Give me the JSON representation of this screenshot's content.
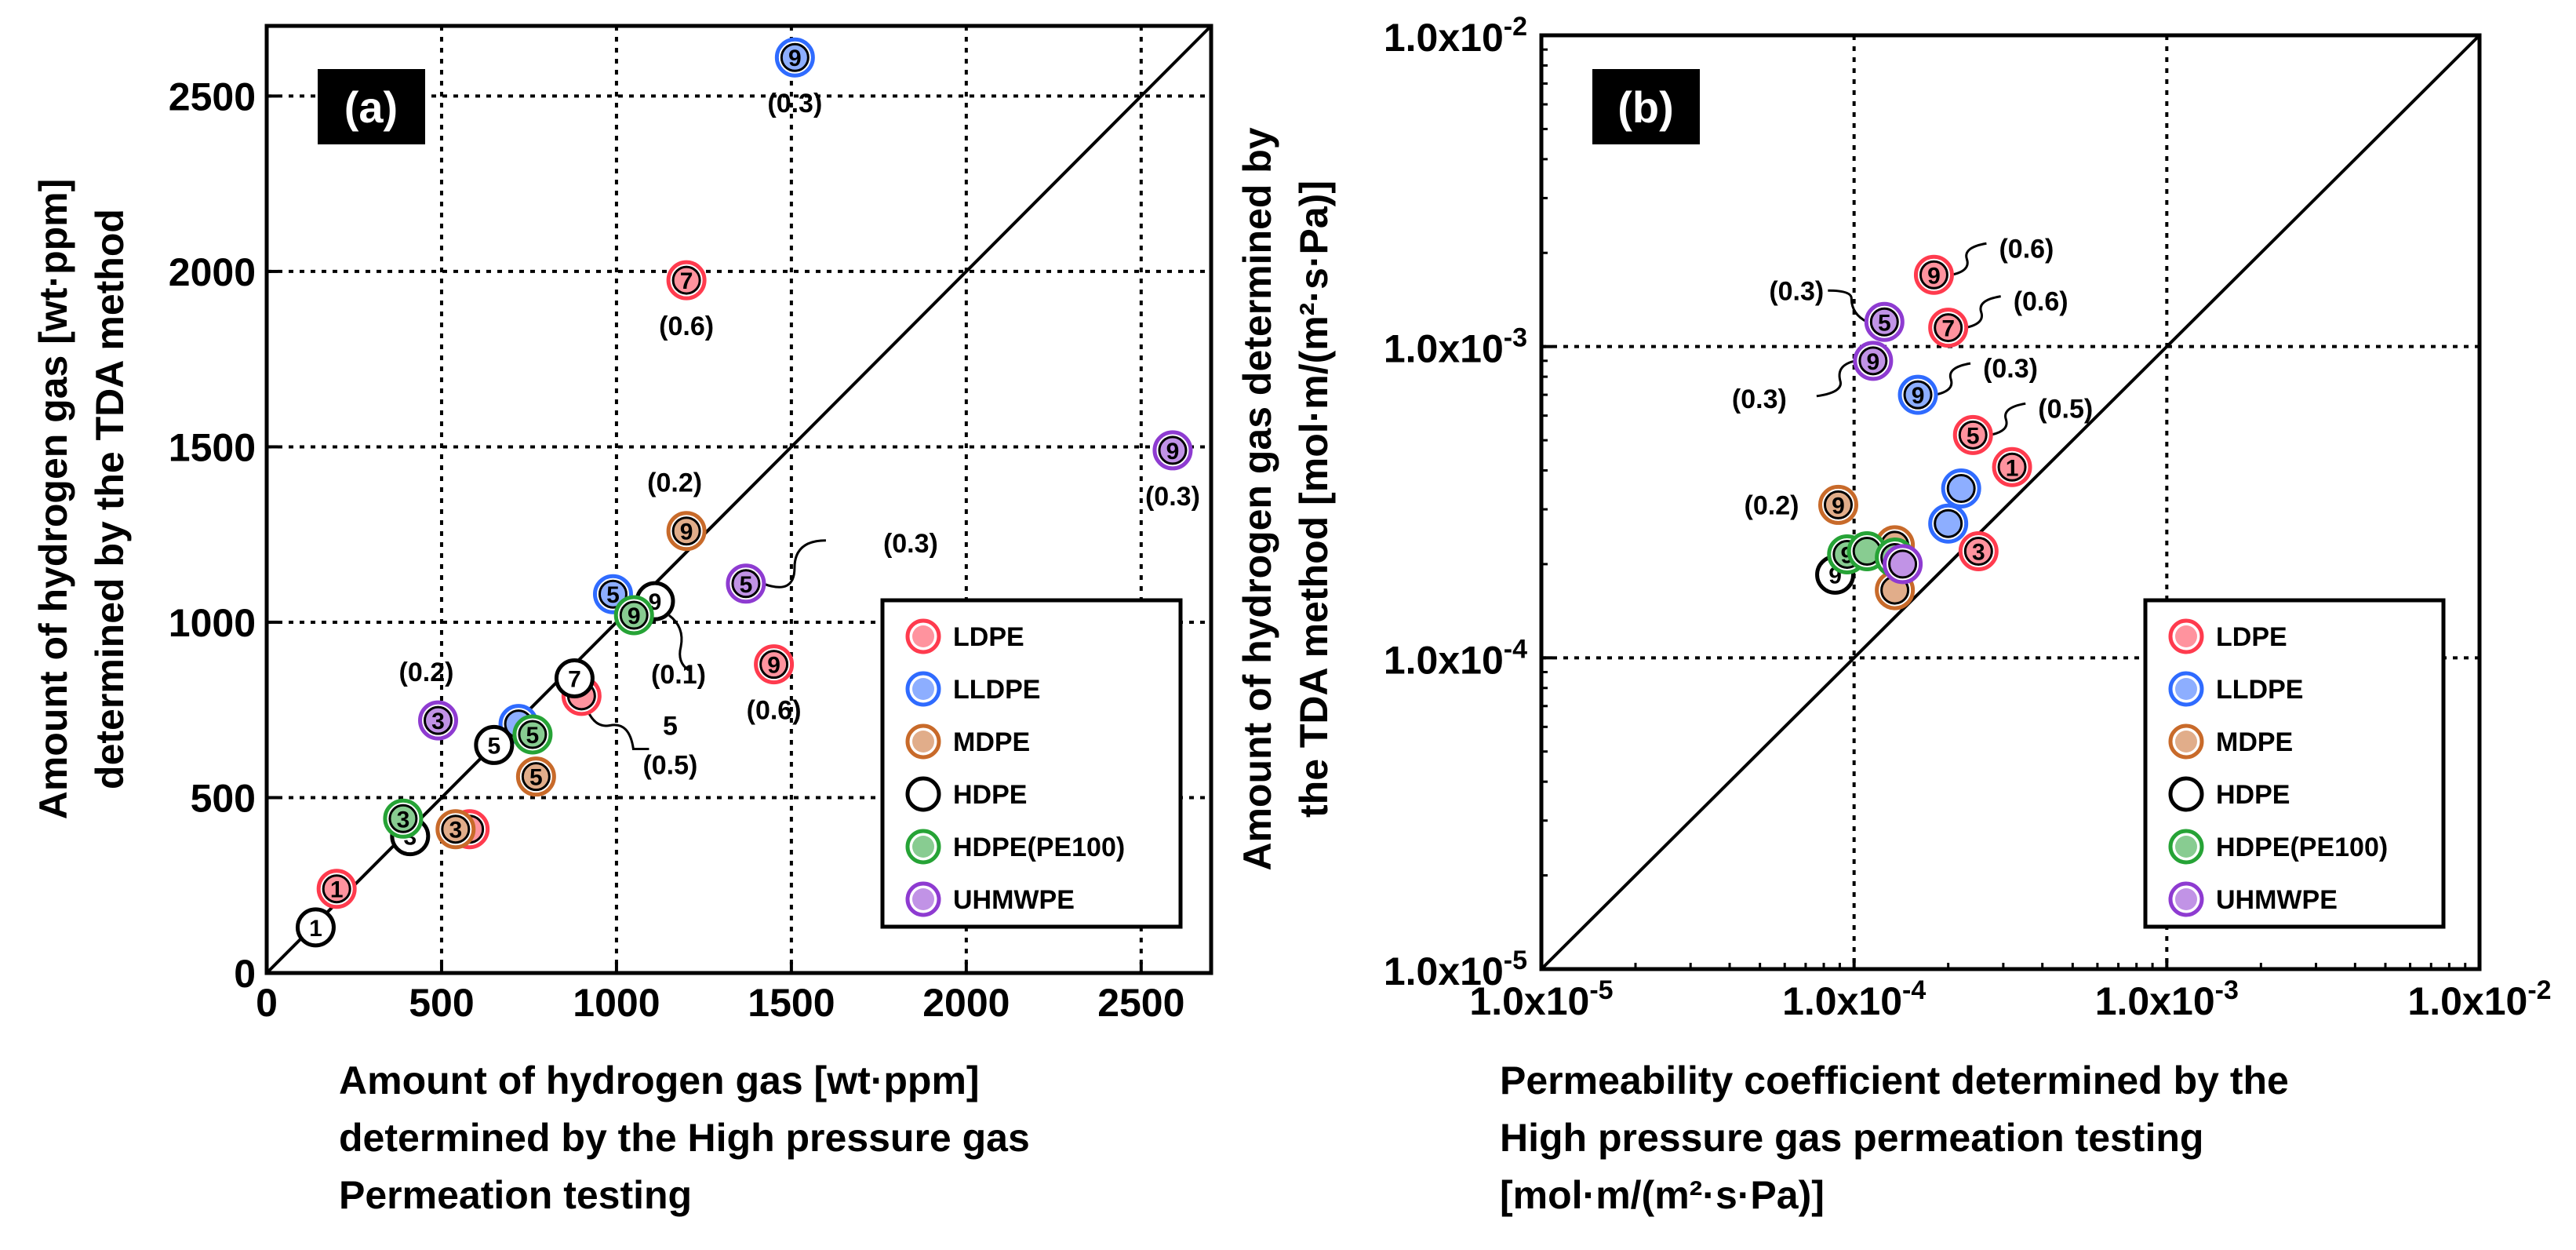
{
  "colors": {
    "LDPE": "#ff3b4e",
    "LLDPE": "#2f6bff",
    "MDPE": "#c86a2a",
    "HDPE": "#111111",
    "HDPE(PE100)": "#26a336",
    "UHMWPE": "#8e3bd1"
  },
  "chart_data": [
    {
      "panel_label": "(a)",
      "type": "scatter",
      "xlabel": [
        "Amount of hydrogen gas [wt·ppm]",
        "determined by the High pressure gas",
        "Permeation testing"
      ],
      "ylabel": [
        "Amount of hydrogen gas [wt·ppm]",
        "determined by the TDA method"
      ],
      "xlim": [
        0,
        2700
      ],
      "ylim": [
        0,
        2700
      ],
      "xticks": [
        "0",
        "500",
        "1000",
        "1500",
        "2000",
        "2500"
      ],
      "yticks": [
        "0",
        "500",
        "1000",
        "1500",
        "2000",
        "2500"
      ],
      "grid": true,
      "reference_line": "y = x",
      "legend_position": "bottom-right",
      "legend": [
        "LDPE",
        "LLDPE",
        "MDPE",
        "HDPE",
        "HDPE(PE100)",
        "UHMWPE"
      ],
      "series": [
        {
          "name": "LDPE",
          "points": [
            {
              "x": 200,
              "y": 240,
              "label": "1"
            },
            {
              "x": 580,
              "y": 410,
              "label": ""
            },
            {
              "x": 900,
              "y": 790,
              "label": ""
            },
            {
              "x": 1200,
              "y": 1975,
              "label": "7",
              "note": "(0.6)"
            },
            {
              "x": 1450,
              "y": 880,
              "label": "9",
              "note": "(0.6)"
            }
          ]
        },
        {
          "name": "LLDPE",
          "points": [
            {
              "x": 720,
              "y": 710,
              "label": ""
            },
            {
              "x": 990,
              "y": 1080,
              "label": "5"
            },
            {
              "x": 1510,
              "y": 2610,
              "label": "9",
              "note": "(0.3)"
            }
          ]
        },
        {
          "name": "MDPE",
          "points": [
            {
              "x": 540,
              "y": 410,
              "label": "3"
            },
            {
              "x": 770,
              "y": 560,
              "label": "5"
            },
            {
              "x": 1200,
              "y": 1260,
              "label": "9",
              "note": "(0.2)"
            }
          ]
        },
        {
          "name": "HDPE",
          "points": [
            {
              "x": 140,
              "y": 130,
              "label": "1"
            },
            {
              "x": 410,
              "y": 390,
              "label": "3"
            },
            {
              "x": 650,
              "y": 650,
              "label": "5"
            },
            {
              "x": 880,
              "y": 840,
              "label": "7",
              "note": "5 (0.5)"
            },
            {
              "x": 1110,
              "y": 1060,
              "label": "9",
              "note": "(0.1)"
            }
          ]
        },
        {
          "name": "HDPE(PE100)",
          "points": [
            {
              "x": 390,
              "y": 440,
              "label": "3"
            },
            {
              "x": 760,
              "y": 680,
              "label": "5"
            },
            {
              "x": 1050,
              "y": 1020,
              "label": "9"
            }
          ]
        },
        {
          "name": "UHMWPE",
          "points": [
            {
              "x": 490,
              "y": 720,
              "label": "3",
              "note": "(0.2)"
            },
            {
              "x": 1370,
              "y": 1110,
              "label": "5",
              "note": "(0.3)"
            },
            {
              "x": 2590,
              "y": 1490,
              "label": "9",
              "note": "(0.3)"
            }
          ]
        }
      ]
    },
    {
      "panel_label": "(b)",
      "type": "scatter",
      "xscale": "log",
      "yscale": "log",
      "xlabel": [
        "Permeability coefficient determined by the",
        "High pressure gas permeation testing",
        "[mol·m/(m²·s·Pa)]"
      ],
      "ylabel": [
        "Amount of hydrogen gas determined by",
        "the TDA method  [mol·m/(m²·s·Pa)]"
      ],
      "xlim": [
        1e-05,
        0.01
      ],
      "ylim": [
        1e-05,
        0.01
      ],
      "tick_mantissa": "1.0x10",
      "tick_exponents": [
        "-5",
        "-4",
        "-3",
        "-2"
      ],
      "grid": true,
      "reference_line": "y = x",
      "legend_position": "bottom-right",
      "legend": [
        "LDPE",
        "LLDPE",
        "MDPE",
        "HDPE",
        "HDPE(PE100)",
        "UHMWPE"
      ],
      "series": [
        {
          "name": "LDPE",
          "points": [
            {
              "x": 0.00032,
              "y": 0.00041,
              "label": "1"
            },
            {
              "x": 0.00025,
              "y": 0.00022,
              "label": "3"
            },
            {
              "x": 0.00024,
              "y": 0.00052,
              "label": "5",
              "note": "(0.5)"
            },
            {
              "x": 0.0002,
              "y": 0.00115,
              "label": "7",
              "note": "(0.6)"
            },
            {
              "x": 0.00018,
              "y": 0.0017,
              "label": "9",
              "note": "(0.6)"
            }
          ]
        },
        {
          "name": "LLDPE",
          "points": [
            {
              "x": 0.00022,
              "y": 0.00035,
              "label": ""
            },
            {
              "x": 0.0002,
              "y": 0.00027,
              "label": ""
            },
            {
              "x": 0.00016,
              "y": 0.0007,
              "label": "9",
              "note": "(0.3)"
            }
          ]
        },
        {
          "name": "MDPE",
          "points": [
            {
              "x": 0.000135,
              "y": 0.000165,
              "label": ""
            },
            {
              "x": 0.000135,
              "y": 0.00023,
              "label": ""
            },
            {
              "x": 8.9e-05,
              "y": 0.00031,
              "label": "9",
              "note": "(0.2)"
            }
          ]
        },
        {
          "name": "HDPE",
          "points": [
            {
              "x": 8.7e-05,
              "y": 0.000185,
              "label": "9"
            }
          ]
        },
        {
          "name": "HDPE(PE100)",
          "points": [
            {
              "x": 9.5e-05,
              "y": 0.000215,
              "label": "9"
            },
            {
              "x": 0.00011,
              "y": 0.00022,
              "label": ""
            },
            {
              "x": 0.000135,
              "y": 0.00021,
              "label": ""
            }
          ]
        },
        {
          "name": "UHMWPE",
          "points": [
            {
              "x": 0.000143,
              "y": 0.0002,
              "label": ""
            },
            {
              "x": 0.000115,
              "y": 0.0009,
              "label": "9",
              "note": "(0.3)"
            },
            {
              "x": 0.000125,
              "y": 0.0012,
              "label": "5",
              "note": "(0.3)"
            }
          ]
        }
      ]
    }
  ]
}
